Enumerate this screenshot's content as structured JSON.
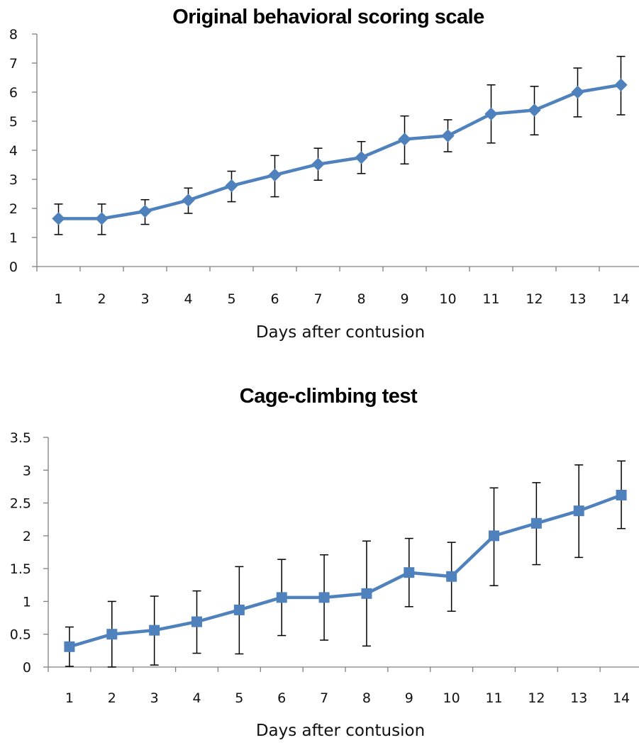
{
  "chart_data": [
    {
      "type": "line",
      "title": "Original behavioral scoring scale",
      "xlabel": "Days after contusion",
      "ylabel": "",
      "x": [
        1,
        2,
        3,
        4,
        5,
        6,
        7,
        8,
        9,
        10,
        11,
        12,
        13,
        14
      ],
      "y_ticks": [
        "0",
        "1",
        "2",
        "3",
        "4",
        "5",
        "6",
        "7",
        "8"
      ],
      "ylim": [
        0,
        8
      ],
      "grid": false,
      "marker": "diamond",
      "color": "#4F81BD",
      "series": [
        {
          "values": [
            1.65,
            1.65,
            1.9,
            2.28,
            2.78,
            3.15,
            3.52,
            3.75,
            4.38,
            4.5,
            5.25,
            5.38,
            6.0,
            6.25
          ],
          "error_plus": [
            0.5,
            0.5,
            0.4,
            0.42,
            0.5,
            0.67,
            0.55,
            0.55,
            0.8,
            0.55,
            1.0,
            0.82,
            0.83,
            0.98
          ],
          "error_minus": [
            0.55,
            0.55,
            0.45,
            0.45,
            0.55,
            0.75,
            0.55,
            0.55,
            0.85,
            0.55,
            1.0,
            0.85,
            0.85,
            1.03
          ]
        }
      ]
    },
    {
      "type": "line",
      "title": "Cage-climbing test",
      "xlabel": "Days after contusion",
      "ylabel": "",
      "x": [
        1,
        2,
        3,
        4,
        5,
        6,
        7,
        8,
        9,
        10,
        11,
        12,
        13,
        14
      ],
      "y_ticks": [
        "0",
        "0.5",
        "1",
        "1.5",
        "2",
        "2.5",
        "3",
        "3.5"
      ],
      "ylim": [
        0,
        3.5
      ],
      "grid": false,
      "marker": "square",
      "color": "#4F81BD",
      "series": [
        {
          "values": [
            0.31,
            0.5,
            0.56,
            0.69,
            0.87,
            1.06,
            1.06,
            1.12,
            1.44,
            1.38,
            2.0,
            2.19,
            2.38,
            2.62
          ],
          "error_plus": [
            0.3,
            0.5,
            0.52,
            0.47,
            0.66,
            0.58,
            0.65,
            0.8,
            0.52,
            0.52,
            0.73,
            0.62,
            0.7,
            0.52
          ],
          "error_minus": [
            0.3,
            0.5,
            0.53,
            0.48,
            0.67,
            0.58,
            0.65,
            0.8,
            0.52,
            0.53,
            0.76,
            0.63,
            0.71,
            0.51
          ]
        }
      ]
    }
  ]
}
